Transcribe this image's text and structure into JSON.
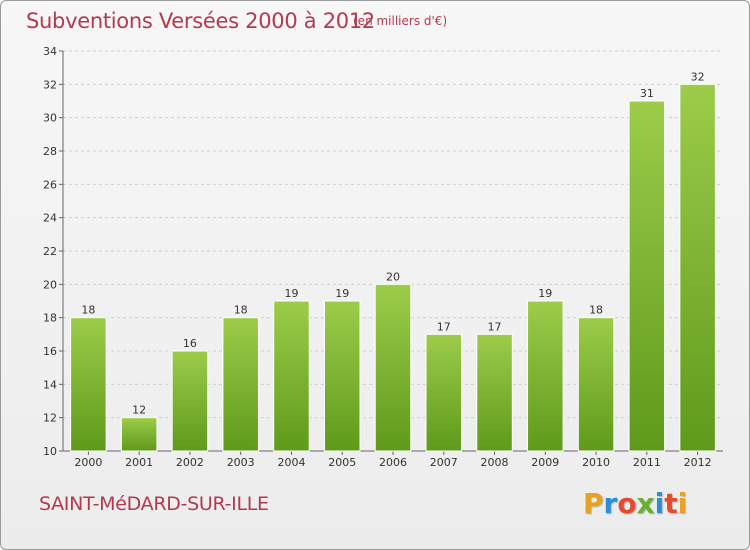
{
  "header": {
    "title": "Subventions Versées 2000 à 2012",
    "subtitle": "(en milliers d'€)"
  },
  "footer": {
    "commune": "SAINT-MéDARD-SUR-ILLE",
    "logo": [
      "P",
      "r",
      "o",
      "x",
      "i",
      "t",
      "i"
    ],
    "logo_colors": [
      "#e8a21c",
      "#2b8fd6",
      "#e64b2e",
      "#6ab02e",
      "#2b8fd6",
      "#e64b2e",
      "#e8a21c"
    ]
  },
  "chart_data": {
    "type": "bar",
    "title": "Subventions Versées 2000 à 2012",
    "subtitle": "(en milliers d'€)",
    "xlabel": "",
    "ylabel": "",
    "categories": [
      "2000",
      "2001",
      "2002",
      "2003",
      "2004",
      "2005",
      "2006",
      "2007",
      "2008",
      "2009",
      "2010",
      "2011",
      "2012"
    ],
    "values": [
      18,
      12,
      16,
      18,
      19,
      19,
      20,
      17,
      17,
      19,
      18,
      31,
      32
    ],
    "ylim": [
      10,
      34
    ],
    "yticks": [
      10,
      12,
      14,
      16,
      18,
      20,
      22,
      24,
      26,
      28,
      30,
      32,
      34
    ],
    "grid": true,
    "bar_color_top": "#9ccc4a",
    "bar_color_bottom": "#5f9a1b"
  }
}
